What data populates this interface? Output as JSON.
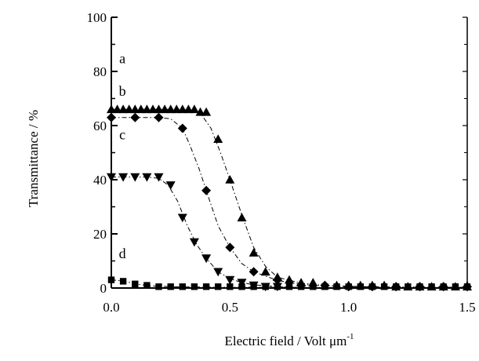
{
  "chart_data": {
    "type": "scatter",
    "xlabel": "Electric field / Volt μm",
    "xlabel_sup": "-1",
    "ylabel": "Transmittance / %",
    "xlim": [
      0,
      1.5
    ],
    "ylim": [
      0,
      100
    ],
    "x_ticks": [
      0.0,
      0.5,
      1.0,
      1.5
    ],
    "x_tick_labels": [
      "0.0",
      "0.5",
      "1.0",
      "1.5"
    ],
    "y_ticks": [
      0,
      20,
      40,
      60,
      80,
      100
    ],
    "y_tick_labels": [
      "0",
      "20",
      "40",
      "60",
      "80",
      "100"
    ],
    "grid": false,
    "legend": "none",
    "series": [
      {
        "name": "a",
        "marker": "triangle-up",
        "x": [
          0.0,
          0.025,
          0.05,
          0.075,
          0.1,
          0.125,
          0.15,
          0.175,
          0.2,
          0.225,
          0.25,
          0.275,
          0.3,
          0.325,
          0.35,
          0.375,
          0.4,
          0.45,
          0.5,
          0.55,
          0.6,
          0.65,
          0.7,
          0.75,
          0.8,
          0.85,
          0.9,
          0.95,
          1.0,
          1.05,
          1.1,
          1.15,
          1.2,
          1.25,
          1.3,
          1.35,
          1.4,
          1.45,
          1.5
        ],
        "y": [
          66,
          66,
          66,
          66,
          66,
          66,
          66,
          66,
          66,
          66,
          66,
          66,
          66,
          66,
          66,
          65,
          65,
          55,
          40,
          26,
          13,
          6,
          4,
          3,
          2,
          2,
          1,
          1,
          1,
          1,
          1,
          1,
          0.5,
          0.5,
          0.5,
          0.5,
          0.5,
          0.5,
          0.5
        ],
        "fit_x": [
          0.0,
          0.1,
          0.2,
          0.3,
          0.35,
          0.38,
          0.42,
          0.46,
          0.5,
          0.55,
          0.6,
          0.65,
          0.7,
          0.8,
          0.9,
          1.1,
          1.5
        ],
        "fit_y": [
          66,
          66,
          66,
          66,
          65.5,
          64,
          59,
          50,
          40,
          27,
          15,
          8,
          4,
          1.8,
          0.9,
          0.4,
          0.2
        ]
      },
      {
        "name": "b",
        "marker": "diamond",
        "x": [
          0.0,
          0.1,
          0.2,
          0.3,
          0.4,
          0.5,
          0.6,
          0.7,
          0.8,
          0.9,
          1.0,
          1.1,
          1.2,
          1.3,
          1.4,
          1.5
        ],
        "y": [
          63,
          63,
          63,
          59,
          36,
          15,
          6,
          3,
          1,
          1,
          0.5,
          0.5,
          0.5,
          0.5,
          0.5,
          0.5
        ],
        "fit_x": [
          0.0,
          0.1,
          0.2,
          0.25,
          0.3,
          0.33,
          0.37,
          0.4,
          0.45,
          0.5,
          0.55,
          0.6,
          0.7,
          0.8,
          1.0,
          1.5
        ],
        "fit_y": [
          63,
          63,
          63,
          62.5,
          59,
          53,
          44,
          36,
          23,
          15,
          9,
          6,
          2.8,
          1.3,
          0.5,
          0.2
        ]
      },
      {
        "name": "c",
        "marker": "triangle-down",
        "x": [
          0.0,
          0.05,
          0.1,
          0.15,
          0.2,
          0.25,
          0.3,
          0.35,
          0.4,
          0.45,
          0.5,
          0.55,
          0.6,
          0.65,
          0.7
        ],
        "y": [
          41,
          41,
          41,
          41,
          41,
          38,
          26,
          17,
          11,
          6,
          3,
          2,
          1,
          0.5,
          0.5
        ],
        "fit_x": [
          0.0,
          0.1,
          0.15,
          0.2,
          0.24,
          0.28,
          0.32,
          0.36,
          0.4,
          0.45,
          0.5,
          0.55,
          0.6,
          0.7,
          0.8,
          0.9
        ],
        "fit_y": [
          41,
          41,
          41,
          40.5,
          38,
          32,
          23,
          16,
          11,
          6,
          3.5,
          2,
          1.2,
          0.5,
          0.2,
          0.1
        ]
      },
      {
        "name": "d",
        "marker": "square",
        "x": [
          0.0,
          0.05,
          0.1,
          0.15,
          0.2,
          0.25,
          0.3,
          0.35,
          0.4,
          0.45,
          0.5,
          0.55,
          0.6,
          0.65,
          0.7,
          0.75,
          0.8,
          0.85,
          0.9,
          0.95,
          1.0,
          1.05,
          1.1,
          1.15,
          1.2,
          1.25,
          1.3,
          1.35,
          1.4,
          1.45,
          1.5
        ],
        "y": [
          3,
          2.5,
          1.5,
          1,
          0.5,
          0.5,
          0.5,
          0.5,
          0.5,
          0.5,
          0.5,
          0.5,
          0.5,
          0.5,
          0.5,
          0.5,
          0.5,
          0.5,
          0.5,
          0.5,
          0.5,
          0.5,
          0.5,
          0.5,
          0.5,
          0.5,
          0.5,
          0.5,
          0.5,
          0.5,
          0.5
        ],
        "fit_x": [
          0.0,
          0.05,
          0.1,
          0.15,
          0.2,
          0.3,
          0.5,
          1.0,
          1.5
        ],
        "fit_y": [
          3,
          2.6,
          1.6,
          0.9,
          0.6,
          0.4,
          0.3,
          0.2,
          0.2
        ]
      }
    ]
  }
}
